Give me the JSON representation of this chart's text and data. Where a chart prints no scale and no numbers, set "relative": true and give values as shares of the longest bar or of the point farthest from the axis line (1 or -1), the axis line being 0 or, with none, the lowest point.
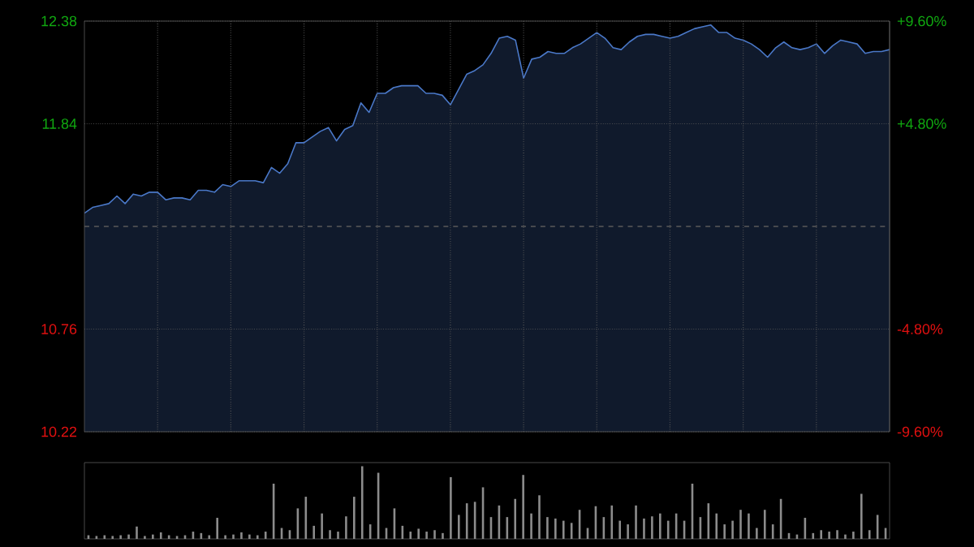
{
  "chart_data": [
    {
      "type": "area",
      "categories": [
        null,
        null,
        null,
        null,
        null,
        null,
        null,
        null,
        null,
        null,
        null,
        null,
        null,
        null,
        null,
        null,
        null,
        null,
        null,
        null,
        null,
        null,
        null,
        null,
        null,
        null,
        null,
        null,
        null,
        null,
        null,
        null,
        null,
        null,
        null,
        null,
        null,
        null,
        null,
        null,
        null,
        null,
        null,
        null,
        null,
        null,
        null,
        null,
        null,
        null,
        null,
        null,
        null,
        null,
        null,
        null,
        null,
        null,
        null,
        null,
        null,
        null,
        null,
        null,
        null,
        null,
        null,
        null,
        null,
        null,
        null,
        null,
        null,
        null,
        null,
        null,
        null,
        null,
        null,
        null,
        null,
        null,
        null,
        null,
        null,
        null,
        null,
        null,
        null,
        null,
        null,
        null,
        null,
        null,
        null,
        null,
        null,
        null,
        null,
        null
      ],
      "series": [
        {
          "color": "#4a78c8",
          "values": [
            11.37,
            11.4,
            11.41,
            11.42,
            11.46,
            11.42,
            11.47,
            11.46,
            11.48,
            11.48,
            11.44,
            11.45,
            11.45,
            11.44,
            11.49,
            11.49,
            11.48,
            11.52,
            11.51,
            11.54,
            11.54,
            11.54,
            11.53,
            11.61,
            11.58,
            11.63,
            11.74,
            11.74,
            11.77,
            11.8,
            11.82,
            11.75,
            11.81,
            11.83,
            11.95,
            11.9,
            12.0,
            12.0,
            12.03,
            12.04,
            12.04,
            12.04,
            12.0,
            12.0,
            11.99,
            11.94,
            12.02,
            12.1,
            12.12,
            12.15,
            12.21,
            12.29,
            12.3,
            12.28,
            12.08,
            12.18,
            12.19,
            12.22,
            12.21,
            12.21,
            12.24,
            12.26,
            12.29,
            12.32,
            12.29,
            12.24,
            12.23,
            12.27,
            12.3,
            12.31,
            12.31,
            12.3,
            12.29,
            12.3,
            12.32,
            12.34,
            12.35,
            12.36,
            12.32,
            12.32,
            12.29,
            12.28,
            12.26,
            12.23,
            12.19,
            12.24,
            12.27,
            12.24,
            12.23,
            12.24,
            12.26,
            12.21,
            12.25,
            12.28,
            12.27,
            12.26,
            12.21,
            12.22,
            12.22,
            12.23
          ]
        }
      ],
      "ylim": [
        10.22,
        12.38
      ],
      "yticks": [
        10.22,
        10.76,
        11.84,
        12.38
      ],
      "y2lim": [
        -9.6,
        9.6
      ],
      "y2ticks": [
        {
          "value": -9.6,
          "label": "-9.60%"
        },
        {
          "value": -4.8,
          "label": "-4.80%"
        },
        {
          "value": 4.8,
          "label": "+4.80%"
        },
        {
          "value": 9.6,
          "label": "+9.60%"
        }
      ],
      "ref_lines": [
        {
          "axis": "y",
          "value": 11.3,
          "line_style": "dashed"
        }
      ],
      "grid": true,
      "tick_labels": "y"
    },
    {
      "type": "bar",
      "categories": [
        null,
        null,
        null,
        null,
        null,
        null,
        null,
        null,
        null,
        null,
        null,
        null,
        null,
        null,
        null,
        null,
        null,
        null,
        null,
        null,
        null,
        null,
        null,
        null,
        null,
        null,
        null,
        null,
        null,
        null,
        null,
        null,
        null,
        null,
        null,
        null,
        null,
        null,
        null,
        null,
        null,
        null,
        null,
        null,
        null,
        null,
        null,
        null,
        null,
        null,
        null,
        null,
        null,
        null,
        null,
        null,
        null,
        null,
        null,
        null,
        null,
        null,
        null,
        null,
        null,
        null,
        null,
        null,
        null,
        null,
        null,
        null,
        null,
        null,
        null,
        null,
        null,
        null,
        null,
        null,
        null,
        null,
        null,
        null,
        null,
        null,
        null,
        null,
        null,
        null,
        null,
        null,
        null,
        null,
        null,
        null,
        null,
        null,
        null,
        null
      ],
      "color": "#8c8c8c",
      "relative": true,
      "tick_labels": false,
      "values": [
        0.05,
        0.04,
        0.05,
        0.04,
        0.05,
        0.06,
        0.17,
        0.04,
        0.06,
        0.09,
        0.05,
        0.04,
        0.05,
        0.1,
        0.08,
        0.05,
        0.29,
        0.05,
        0.06,
        0.09,
        0.06,
        0.05,
        0.1,
        0.76,
        0.15,
        0.12,
        0.42,
        0.58,
        0.18,
        0.35,
        0.12,
        0.1,
        0.31,
        0.58,
        1.0,
        0.2,
        0.91,
        0.15,
        0.42,
        0.18,
        0.1,
        0.14,
        0.1,
        0.12,
        0.08,
        0.85,
        0.33,
        0.49,
        0.51,
        0.71,
        0.3,
        0.46,
        0.3,
        0.55,
        0.88,
        0.35,
        0.6,
        0.3,
        0.28,
        0.25,
        0.22,
        0.4,
        0.15,
        0.45,
        0.3,
        0.46,
        0.25,
        0.2,
        0.46,
        0.28,
        0.31,
        0.35,
        0.25,
        0.35,
        0.25,
        0.76,
        0.3,
        0.49,
        0.35,
        0.2,
        0.25,
        0.4,
        0.35,
        0.15,
        0.4,
        0.2,
        0.55,
        0.08,
        0.06,
        0.29,
        0.08,
        0.12,
        0.1,
        0.12,
        0.06,
        0.1,
        0.62,
        0.12,
        0.33,
        0.15
      ]
    }
  ]
}
